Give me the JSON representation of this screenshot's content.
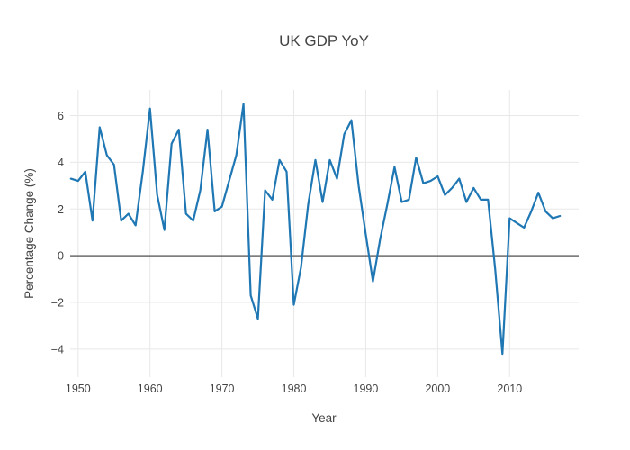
{
  "title": "UK GDP YoY",
  "x_axis": {
    "title": "Year",
    "tick_values": [
      1950,
      1960,
      1970,
      1980,
      1990,
      2000,
      2010
    ],
    "tick_labels": [
      "1950",
      "1960",
      "1970",
      "1980",
      "1990",
      "2000",
      "2010"
    ],
    "range": [
      1948.9,
      2019.6
    ]
  },
  "y_axis": {
    "title": "Percentage Change (%)",
    "tick_values": [
      -4,
      -2,
      0,
      2,
      4,
      6
    ],
    "tick_labels": [
      "−4",
      "−2",
      "0",
      "2",
      "4",
      "6"
    ],
    "range": [
      -5.2,
      7.1
    ]
  },
  "colors": {
    "line": "#1f77b4",
    "grid": "#e8e8e8",
    "zero_line": "#6b6b6b",
    "text": "#444444",
    "background": "#ffffff"
  },
  "chart_data": {
    "type": "line",
    "title": "UK GDP YoY",
    "xlabel": "Year",
    "ylabel": "Percentage Change (%)",
    "legend": false,
    "grid": true,
    "xlim": [
      1948.9,
      2019.6
    ],
    "ylim": [
      -5.2,
      7.1
    ],
    "series_name": "UK GDP YoY",
    "x": [
      1949,
      1950,
      1951,
      1952,
      1953,
      1954,
      1955,
      1956,
      1957,
      1958,
      1959,
      1960,
      1961,
      1962,
      1963,
      1964,
      1965,
      1966,
      1967,
      1968,
      1969,
      1970,
      1971,
      1972,
      1973,
      1974,
      1975,
      1976,
      1977,
      1978,
      1979,
      1980,
      1981,
      1982,
      1983,
      1984,
      1985,
      1986,
      1987,
      1988,
      1989,
      1990,
      1991,
      1992,
      1993,
      1994,
      1995,
      1996,
      1997,
      1998,
      1999,
      2000,
      2001,
      2002,
      2003,
      2004,
      2005,
      2006,
      2007,
      2008,
      2009,
      2010,
      2011,
      2012,
      2013,
      2014,
      2015,
      2016,
      2017
    ],
    "y": [
      3.3,
      3.2,
      3.6,
      1.5,
      5.5,
      4.3,
      3.9,
      1.5,
      1.8,
      1.3,
      3.6,
      6.3,
      2.6,
      1.1,
      4.8,
      5.4,
      1.8,
      1.5,
      2.8,
      5.4,
      1.9,
      2.1,
      3.2,
      4.3,
      6.5,
      -1.7,
      -2.7,
      2.8,
      2.4,
      4.1,
      3.6,
      -2.1,
      -0.5,
      2.2,
      4.1,
      2.3,
      4.1,
      3.3,
      5.2,
      5.8,
      3.0,
      0.9,
      -1.1,
      0.7,
      2.2,
      3.8,
      2.3,
      2.4,
      4.2,
      3.1,
      3.2,
      3.4,
      2.6,
      2.9,
      3.3,
      2.3,
      2.9,
      2.4,
      2.4,
      -0.6,
      -4.2,
      1.6,
      1.4,
      1.2,
      1.9,
      2.7,
      1.9,
      1.6,
      1.7
    ]
  }
}
